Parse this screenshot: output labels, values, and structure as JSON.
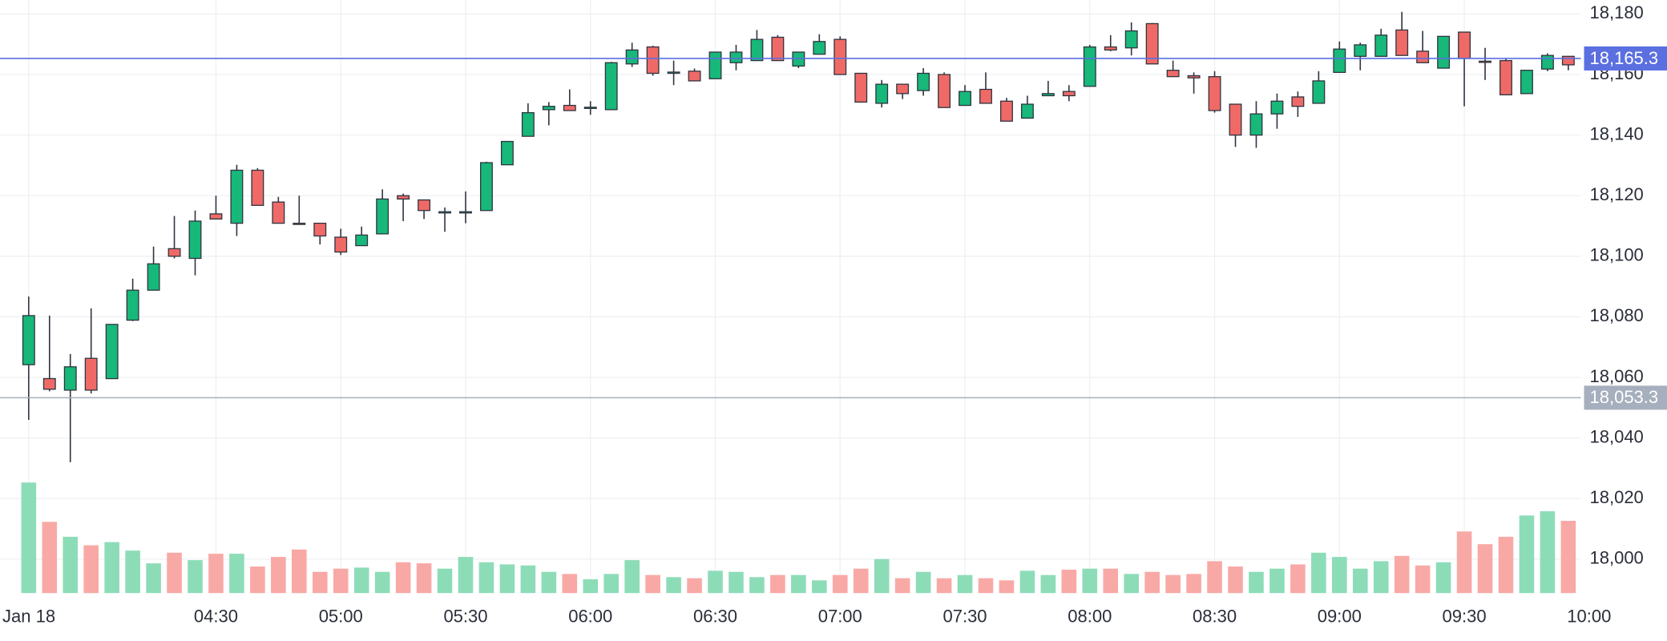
{
  "chart_data": {
    "type": "candlestick",
    "open": [
      18064.2,
      18059.6,
      18055.8,
      18066.3,
      18059.6,
      18078.9,
      18088.8,
      18102.5,
      18099.3,
      18114.0,
      18110.9,
      18128.4,
      18117.9,
      18110.9,
      18110.9,
      18106.3,
      18103.5,
      18107.4,
      18120.0,
      18118.6,
      18114.4,
      18114.4,
      18115.1,
      18130.2,
      18139.6,
      18148.4,
      18149.8,
      18149.0,
      18148.4,
      18163.5,
      18169.1,
      18160.6,
      18161.1,
      18158.6,
      18163.9,
      18164.6,
      18172.3,
      18162.8,
      18166.7,
      18171.6,
      18160.4,
      18150.5,
      18156.8,
      18154.7,
      18160.0,
      18149.8,
      18155.1,
      18151.2,
      18145.6,
      18153.0,
      18154.4,
      18156.1,
      18169.1,
      18168.8,
      18176.8,
      18161.4,
      18159.6,
      18159.3,
      18150.2,
      18140.0,
      18147.0,
      18152.6,
      18150.5,
      18160.7,
      18166.0,
      18166.0,
      18174.7,
      18167.7,
      18162.1,
      18174.0,
      18164.4,
      18164.6,
      18153.7,
      18161.8,
      18166.0
    ],
    "high": [
      18086.7,
      18080.4,
      18067.7,
      18082.8,
      18077.5,
      18092.6,
      18103.2,
      18113.3,
      18115.1,
      18120.0,
      18130.2,
      18129.1,
      18119.6,
      18120.0,
      18110.9,
      18109.1,
      18109.8,
      18122.1,
      18120.7,
      18118.6,
      18116.1,
      18121.4,
      18131.2,
      18137.9,
      18150.5,
      18150.9,
      18155.1,
      18151.2,
      18164.2,
      18170.5,
      18169.5,
      18164.6,
      18162.0,
      18167.4,
      18169.8,
      18174.7,
      18173.0,
      18167.4,
      18173.3,
      18172.6,
      18160.4,
      18158.2,
      18156.8,
      18162.1,
      18160.7,
      18156.5,
      18160.7,
      18152.3,
      18153.0,
      18157.9,
      18156.5,
      18169.8,
      18173.0,
      18177.2,
      18177.0,
      18164.6,
      18160.7,
      18161.1,
      18150.2,
      18151.2,
      18153.7,
      18154.4,
      18161.1,
      18170.9,
      18170.5,
      18175.1,
      18180.7,
      18174.4,
      18172.6,
      18174.0,
      18168.8,
      18165.3,
      18161.4,
      18167.0,
      18166.0
    ],
    "low": [
      18046.0,
      18055.4,
      18032.0,
      18054.7,
      18059.6,
      18078.6,
      18088.8,
      18099.3,
      18093.7,
      18112.3,
      18106.7,
      18116.8,
      18110.9,
      18110.5,
      18103.9,
      18100.4,
      18103.5,
      18107.4,
      18111.6,
      18112.3,
      18108.1,
      18110.9,
      18115.1,
      18130.2,
      18139.6,
      18143.2,
      18148.1,
      18146.7,
      18148.4,
      18162.5,
      18159.6,
      18156.5,
      18157.9,
      18158.6,
      18161.4,
      18164.6,
      18164.6,
      18162.1,
      18166.7,
      18160.0,
      18150.9,
      18149.1,
      18151.9,
      18153.0,
      18149.1,
      18149.8,
      18150.5,
      18144.6,
      18145.6,
      18153.0,
      18151.2,
      18156.1,
      18167.7,
      18166.3,
      18163.5,
      18159.3,
      18153.7,
      18147.4,
      18136.1,
      18135.8,
      18142.1,
      18146.0,
      18150.5,
      18160.7,
      18161.4,
      18166.0,
      18166.3,
      18163.9,
      18162.1,
      18149.5,
      18158.2,
      18153.3,
      18153.7,
      18161.1,
      18161.4
    ],
    "close": [
      18080.4,
      18056.1,
      18063.5,
      18055.8,
      18077.5,
      18088.8,
      18097.5,
      18100.0,
      18111.6,
      18112.3,
      18128.4,
      18116.8,
      18110.9,
      18110.5,
      18106.7,
      18101.4,
      18107.0,
      18118.9,
      18118.9,
      18115.1,
      18114.7,
      18114.7,
      18130.9,
      18137.9,
      18147.4,
      18149.5,
      18148.1,
      18149.2,
      18163.9,
      18168.1,
      18160.4,
      18160.8,
      18157.9,
      18167.4,
      18167.4,
      18171.6,
      18164.6,
      18167.4,
      18170.9,
      18160.0,
      18150.9,
      18156.8,
      18153.7,
      18160.4,
      18149.1,
      18154.4,
      18150.5,
      18144.6,
      18150.2,
      18153.7,
      18153.0,
      18169.1,
      18168.1,
      18174.4,
      18163.5,
      18159.3,
      18158.9,
      18148.1,
      18140.0,
      18147.0,
      18151.2,
      18149.5,
      18157.9,
      18168.4,
      18169.8,
      18173.0,
      18166.3,
      18163.9,
      18172.6,
      18165.3,
      18164.2,
      18153.3,
      18161.4,
      18166.3,
      18163.2
    ],
    "volume": [
      104,
      67,
      53,
      45,
      48,
      40,
      28,
      38,
      31,
      37,
      37,
      25,
      34,
      41,
      20,
      23,
      24,
      20,
      29,
      28,
      23,
      34,
      29,
      27,
      26,
      20,
      18,
      13,
      18,
      31,
      17,
      15,
      14,
      21,
      20,
      15,
      17,
      17,
      12,
      17,
      23,
      32,
      14,
      20,
      14,
      17,
      14,
      12,
      21,
      17,
      22,
      23,
      23,
      18,
      20,
      17,
      18,
      30,
      25,
      20,
      23,
      27,
      38,
      34,
      23,
      30,
      35,
      26,
      29,
      58,
      46,
      53,
      73,
      77,
      68
    ],
    "xticks": [
      {
        "value": 0,
        "label": "Jan 18"
      },
      {
        "value": 9,
        "label": "04:30"
      },
      {
        "value": 15,
        "label": "05:00"
      },
      {
        "value": 21,
        "label": "05:30"
      },
      {
        "value": 27,
        "label": "06:00"
      },
      {
        "value": 33,
        "label": "06:30"
      },
      {
        "value": 39,
        "label": "07:00"
      },
      {
        "value": 45,
        "label": "07:30"
      },
      {
        "value": 51,
        "label": "08:00"
      },
      {
        "value": 57,
        "label": "08:30"
      },
      {
        "value": 63,
        "label": "09:00"
      },
      {
        "value": 69,
        "label": "09:30"
      },
      {
        "value": 75,
        "label": "10:00"
      }
    ],
    "ylim": [
      17988.8,
      18184.6
    ],
    "yticks": [
      {
        "value": 18000,
        "label": "18,000"
      },
      {
        "value": 18020,
        "label": "18,020"
      },
      {
        "value": 18040,
        "label": "18,040"
      },
      {
        "value": 18060,
        "label": "18,060"
      },
      {
        "value": 18080,
        "label": "18,080"
      },
      {
        "value": 18100,
        "label": "18,100"
      },
      {
        "value": 18120,
        "label": "18,120"
      },
      {
        "value": 18140,
        "label": "18,140"
      },
      {
        "value": 18160,
        "label": "18,160"
      },
      {
        "value": 18180,
        "label": "18,180"
      }
    ],
    "price_lines": [
      {
        "value": 18165.3,
        "label": "18,165.3",
        "color": "#5b6fe0"
      },
      {
        "value": 18053.3,
        "label": "18,053.3",
        "color": "#a6afbd"
      }
    ],
    "up_color": "#17b87a",
    "down_color": "#ef6a67",
    "volume_up_color": "#8ddcb8",
    "volume_down_color": "#f8a9a6",
    "grid": true
  }
}
